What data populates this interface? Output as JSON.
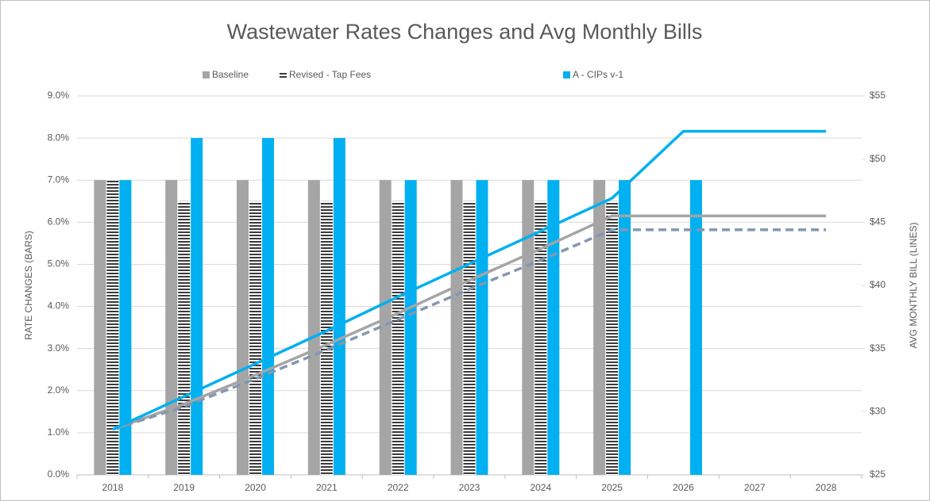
{
  "chart_data": {
    "type": "bar",
    "title": "Wastewater Rates Changes and Avg Monthly Bills",
    "ylabel": "RATE CHANGES (BARS)",
    "y2label": "AVG MONTHLY BILL (LINES)",
    "categories": [
      "2018",
      "2019",
      "2020",
      "2021",
      "2022",
      "2023",
      "2024",
      "2025",
      "2026",
      "2027",
      "2028"
    ],
    "series": [
      {
        "name": "Baseline",
        "type": "bar",
        "color": "#a5a5a5",
        "values": [
          7.0,
          7.0,
          7.0,
          7.0,
          7.0,
          7.0,
          7.0,
          7.0,
          null,
          null,
          null
        ]
      },
      {
        "name": "Revised - Tap Fees",
        "type": "bar",
        "color": "#3a3a3a",
        "pattern": "horizontal-stripes",
        "values": [
          7.0,
          6.5,
          6.5,
          6.5,
          6.5,
          6.5,
          6.5,
          6.5,
          null,
          null,
          null
        ]
      },
      {
        "name": "A - CIPs v-1",
        "type": "bar",
        "color": "#00b0f0",
        "values": [
          7.0,
          8.0,
          8.0,
          8.0,
          7.0,
          7.0,
          7.0,
          7.0,
          7.0,
          null,
          null
        ]
      },
      {
        "type": "line",
        "axis": "y2",
        "color": "#a5a5a5",
        "values": [
          28.6,
          30.6,
          32.9,
          35.3,
          37.8,
          40.4,
          42.9,
          45.5,
          45.5,
          45.5,
          45.5
        ]
      },
      {
        "type": "line",
        "axis": "y2",
        "color": "#8497b0",
        "dash": true,
        "values": [
          28.6,
          30.4,
          32.6,
          34.9,
          37.3,
          39.7,
          42.0,
          44.4,
          44.4,
          44.4,
          44.4
        ]
      },
      {
        "type": "line",
        "axis": "y2",
        "color": "#00b0f0",
        "values": [
          28.6,
          31.2,
          33.8,
          36.4,
          39.1,
          41.7,
          44.3,
          46.9,
          52.2,
          52.2,
          52.2
        ]
      }
    ],
    "ylim": [
      0,
      9
    ],
    "yticks": [
      {
        "value": 0,
        "label": "0.0%"
      },
      {
        "value": 1,
        "label": "1.0%"
      },
      {
        "value": 2,
        "label": "2.0%"
      },
      {
        "value": 3,
        "label": "3.0%"
      },
      {
        "value": 4,
        "label": "4.0%"
      },
      {
        "value": 5,
        "label": "5.0%"
      },
      {
        "value": 6,
        "label": "6.0%"
      },
      {
        "value": 7,
        "label": "7.0%"
      },
      {
        "value": 8,
        "label": "8.0%"
      },
      {
        "value": 9,
        "label": "9.0%"
      }
    ],
    "y2lim": [
      25,
      55
    ],
    "y2ticks": [
      {
        "value": 25,
        "label": "$25"
      },
      {
        "value": 30,
        "label": "$30"
      },
      {
        "value": 35,
        "label": "$35"
      },
      {
        "value": 40,
        "label": "$40"
      },
      {
        "value": 45,
        "label": "$45"
      },
      {
        "value": 50,
        "label": "$50"
      },
      {
        "value": 55,
        "label": "$55"
      }
    ],
    "grid": true,
    "legend": "top"
  }
}
